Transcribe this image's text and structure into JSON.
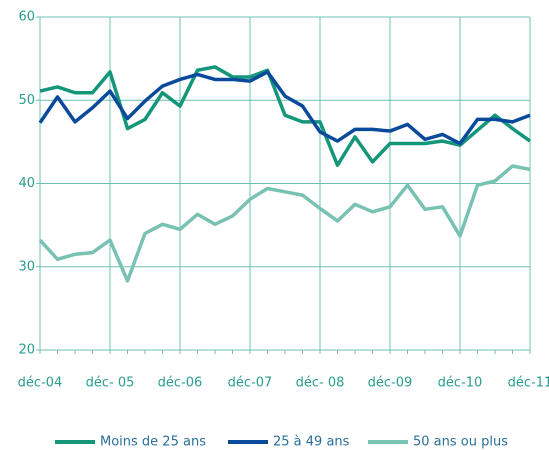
{
  "chart_data": {
    "type": "line",
    "categories": [
      "déc-04",
      null,
      null,
      null,
      "déc- 05",
      null,
      null,
      null,
      "déc-06",
      null,
      null,
      null,
      "déc-07",
      null,
      null,
      null,
      "déc- 08",
      null,
      null,
      null,
      "déc-09",
      null,
      null,
      null,
      "déc-10",
      null,
      null,
      null,
      "déc-11"
    ],
    "series": [
      {
        "name": "Moins de 25 ans",
        "color": "#13967a",
        "values": [
          51.1,
          51.6,
          50.9,
          50.9,
          53.4,
          46.6,
          47.7,
          50.9,
          49.3,
          53.6,
          54.0,
          52.8,
          52.8,
          53.6,
          48.2,
          47.4,
          47.4,
          42.2,
          45.6,
          42.6,
          44.8,
          44.8,
          44.8,
          45.1,
          44.6,
          46.4,
          48.2,
          46.6,
          45.1
        ]
      },
      {
        "name": "25 à 49 ans",
        "color": "#0a4a9a",
        "values": [
          47.3,
          50.4,
          47.4,
          49.1,
          51.1,
          47.8,
          49.9,
          51.7,
          52.5,
          53.1,
          52.5,
          52.5,
          52.3,
          53.4,
          50.5,
          49.3,
          46.2,
          45.1,
          46.5,
          46.5,
          46.3,
          47.1,
          45.3,
          45.9,
          44.8,
          47.7,
          47.7,
          47.4,
          48.2
        ]
      },
      {
        "name": "50 ans ou plus",
        "color": "#78c2b4",
        "values": [
          33.2,
          30.9,
          31.5,
          31.7,
          33.2,
          28.3,
          34.0,
          35.1,
          34.5,
          36.3,
          35.1,
          36.1,
          38.1,
          39.4,
          39.0,
          38.6,
          37.0,
          35.5,
          37.5,
          36.6,
          37.2,
          39.8,
          36.9,
          37.2,
          33.7,
          39.8,
          40.3,
          42.1,
          41.7
        ]
      }
    ],
    "ylim": [
      20,
      60
    ],
    "yticks": [
      20,
      30,
      40,
      50,
      60
    ],
    "grid": true
  }
}
